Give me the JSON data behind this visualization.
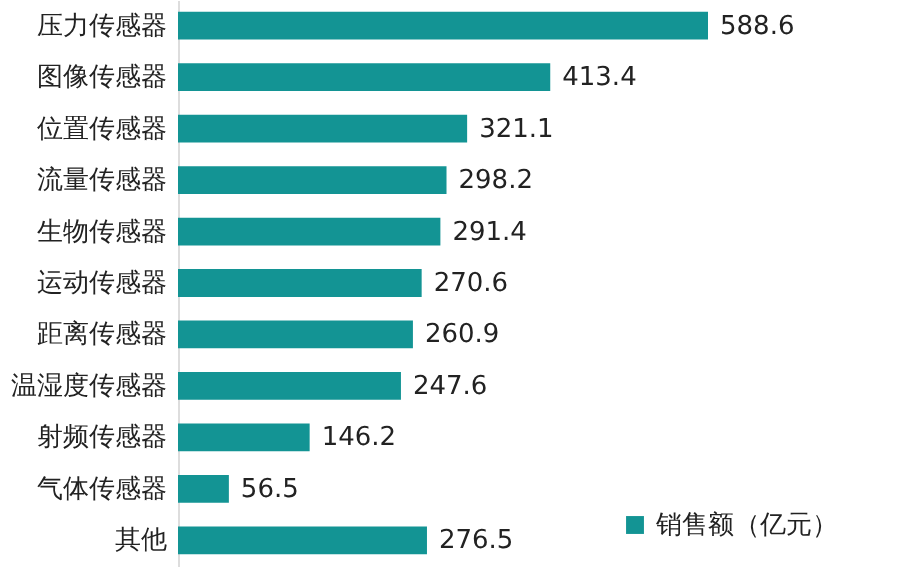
{
  "chart_data": {
    "type": "bar",
    "orientation": "horizontal",
    "data_labels": true,
    "legend": "bottom right",
    "categories": [
      "压力传感器",
      "图像传感器",
      "位置传感器",
      "流量传感器",
      "生物传感器",
      "运动传感器",
      "距离传感器",
      "温湿度传感器",
      "射频传感器",
      "气体传感器",
      "其他"
    ],
    "series": [
      {
        "name": "销售额（亿元）",
        "color": "#139494",
        "values": [
          588.6,
          413.4,
          321.1,
          298.2,
          291.4,
          270.6,
          260.9,
          247.6,
          146.2,
          56.5,
          276.5
        ]
      }
    ]
  }
}
